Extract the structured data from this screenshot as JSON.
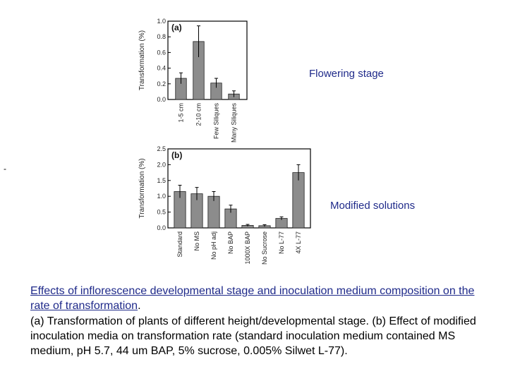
{
  "chart_data": [
    {
      "type": "bar",
      "panel": "(a)",
      "ylabel": "Transformation (%)",
      "categories": [
        "1-5 cm",
        "2-10 cm",
        "Few Siliques",
        "Many Siliques"
      ],
      "values": [
        0.27,
        0.74,
        0.21,
        0.07
      ],
      "errors": [
        0.07,
        0.2,
        0.06,
        0.04
      ],
      "ylim": [
        0,
        1.0
      ],
      "yticks": [
        "0.0",
        "0.2",
        "0.4",
        "0.6",
        "0.8",
        "1.0"
      ],
      "bar_color": "#8c8c8c",
      "grid": false
    },
    {
      "type": "bar",
      "panel": "(b)",
      "ylabel": "Transformation (%)",
      "categories": [
        "Standard",
        "No MS",
        "No pH adj",
        "No BAP",
        "1000X BAP",
        "No Sucrose",
        "No L-77",
        "4X L-77"
      ],
      "values": [
        1.15,
        1.08,
        1.0,
        0.6,
        0.08,
        0.07,
        0.3,
        1.75
      ],
      "errors": [
        0.2,
        0.2,
        0.15,
        0.12,
        0.03,
        0.03,
        0.05,
        0.25
      ],
      "ylim": [
        0,
        2.5
      ],
      "yticks": [
        "0.0",
        "0.5",
        "1.0",
        "1.5",
        "2.0",
        "2.5"
      ],
      "bar_color": "#8c8c8c",
      "grid": false
    }
  ],
  "labels": {
    "stage_a": "Flowering stage",
    "stage_b": "Modified solutions",
    "dash": "-"
  },
  "caption": {
    "title": "Effects of inflorescence developmental stage and inoculation medium composition on the rate of transformation",
    "title_punct": ".",
    "body": "(a) Transformation of plants of different height/developmental stage. (b) Effect of modified inoculation media on transformation rate (standard inoculation medium contained MS medium, pH 5.7, 44 um BAP, 5% sucrose, 0.005% Silwet L-77)."
  }
}
